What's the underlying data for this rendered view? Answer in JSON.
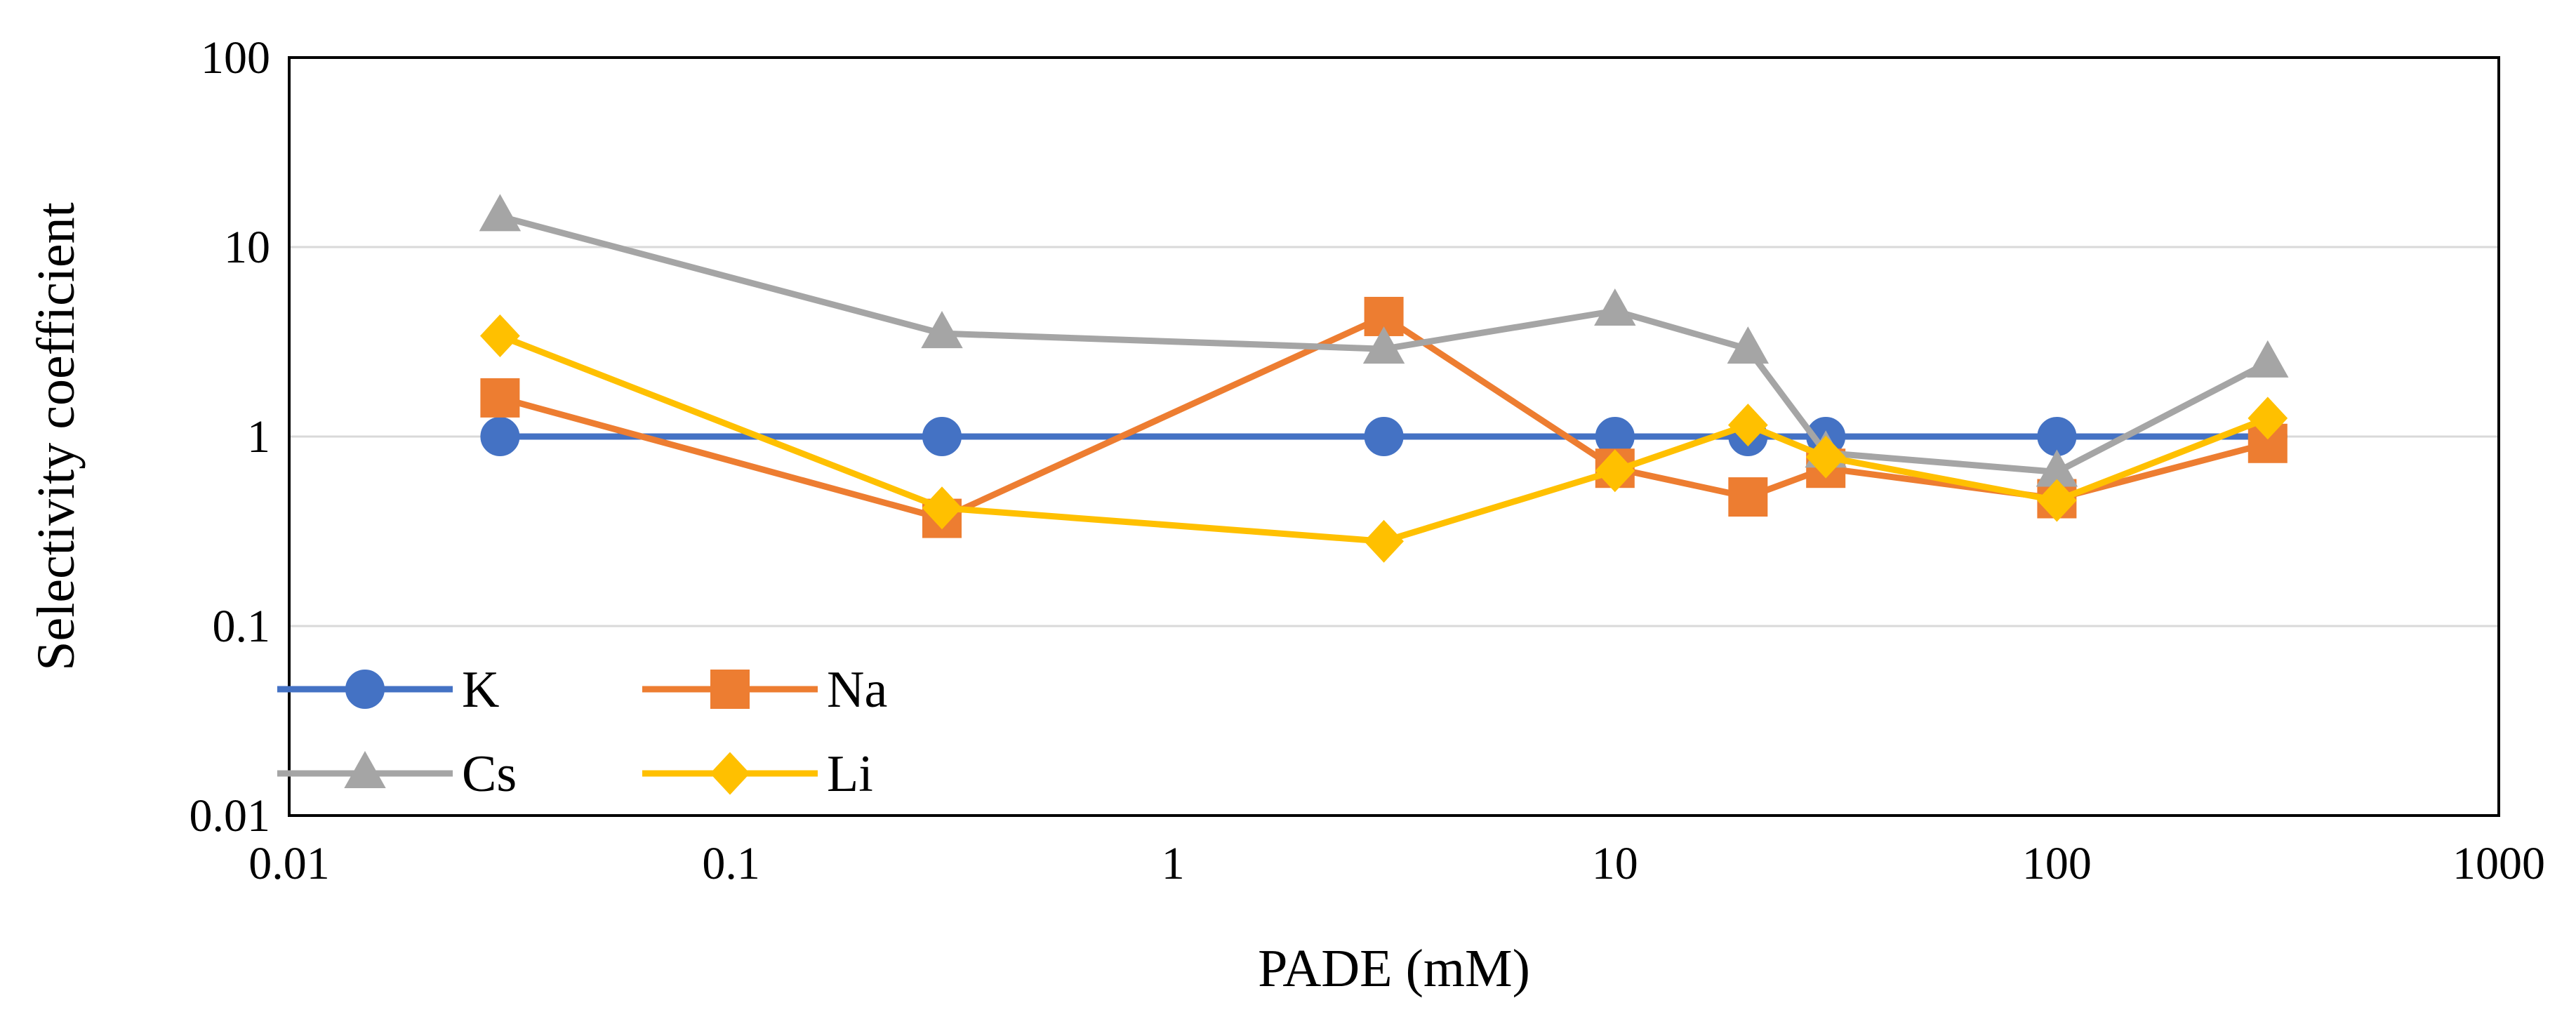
{
  "chart_data": {
    "type": "line",
    "title": "",
    "xlabel": "PADE (mM)",
    "ylabel": "Selectivity coefficient",
    "x_scale": "log",
    "y_scale": "log",
    "xlim": [
      0.01,
      1000
    ],
    "ylim": [
      0.01,
      100
    ],
    "x_ticks": [
      0.01,
      0.1,
      1,
      10,
      100,
      1000
    ],
    "x_tick_labels": [
      "0.01",
      "0.1",
      "1",
      "10",
      "100",
      "1000"
    ],
    "y_ticks": [
      0.01,
      0.1,
      1,
      10,
      100
    ],
    "y_tick_labels": [
      "0.01",
      "0.1",
      "1",
      "10",
      "100"
    ],
    "grid": "horizontal-major",
    "legend_position": "bottom-left-inside",
    "series": [
      {
        "name": "K",
        "color": "#4472C4",
        "marker": "circle",
        "x": [
          0.03,
          0.3,
          3,
          10,
          20,
          30,
          100,
          300
        ],
        "y": [
          1,
          1,
          1,
          1,
          1,
          1,
          1,
          1
        ]
      },
      {
        "name": "Na",
        "color": "#ED7D31",
        "marker": "square",
        "x": [
          0.03,
          0.3,
          3,
          10,
          20,
          30,
          100,
          300
        ],
        "y": [
          1.6,
          0.37,
          4.3,
          0.68,
          0.48,
          0.68,
          0.47,
          0.92
        ]
      },
      {
        "name": "Cs",
        "color": "#A5A5A5",
        "marker": "triangle",
        "x": [
          0.03,
          0.3,
          3,
          10,
          20,
          30,
          100,
          300
        ],
        "y": [
          14.5,
          3.5,
          2.9,
          4.6,
          2.9,
          0.82,
          0.65,
          2.45
        ]
      },
      {
        "name": "Li",
        "color": "#FFC000",
        "marker": "diamond",
        "x": [
          0.03,
          0.3,
          3,
          10,
          20,
          30,
          100,
          300
        ],
        "y": [
          3.4,
          0.42,
          0.28,
          0.66,
          1.15,
          0.78,
          0.46,
          1.25
        ]
      }
    ]
  }
}
